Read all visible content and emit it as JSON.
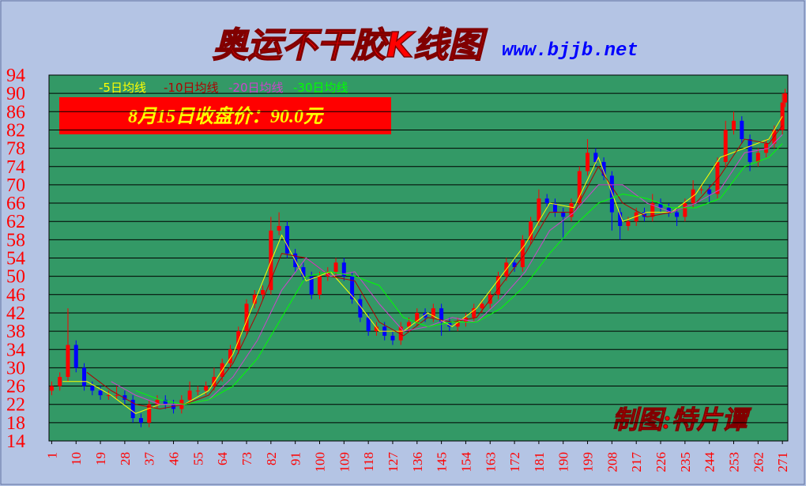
{
  "chart_data": {
    "type": "candlestick",
    "title": "奥运不干胶K线图",
    "subtitle": "www.bjjb.net",
    "annotation": "8月15日收盘价：90.0元",
    "credit": "制图:特片谭",
    "up_color": "#ff0000",
    "down_color": "#0000ff",
    "xlim": [
      0,
      273
    ],
    "ylim": [
      14,
      94
    ],
    "yticks": [
      14,
      18,
      22,
      26,
      30,
      34,
      38,
      42,
      46,
      50,
      54,
      58,
      62,
      66,
      70,
      74,
      78,
      82,
      86,
      90,
      94
    ],
    "xticks": [
      1,
      10,
      19,
      28,
      37,
      46,
      55,
      64,
      73,
      82,
      91,
      100,
      109,
      118,
      127,
      136,
      145,
      154,
      163,
      172,
      181,
      190,
      199,
      208,
      217,
      226,
      235,
      244,
      253,
      262,
      271
    ],
    "grid": true,
    "candles": [
      [
        1,
        25,
        27,
        24,
        26
      ],
      [
        4,
        26,
        29,
        25,
        28
      ],
      [
        7,
        28,
        43,
        27,
        35
      ],
      [
        10,
        35,
        36,
        29,
        30
      ],
      [
        13,
        30,
        31,
        25,
        26
      ],
      [
        16,
        26,
        27,
        24,
        25
      ],
      [
        19,
        25,
        26,
        23,
        24
      ],
      [
        22,
        24,
        25,
        23,
        24
      ],
      [
        25,
        24,
        26,
        23,
        24
      ],
      [
        28,
        24,
        25,
        22,
        23
      ],
      [
        31,
        23,
        24,
        18,
        19
      ],
      [
        34,
        19,
        20,
        17,
        18
      ],
      [
        37,
        18,
        23,
        17,
        22
      ],
      [
        40,
        22,
        24,
        21,
        23
      ],
      [
        43,
        23,
        24,
        21,
        22
      ],
      [
        46,
        22,
        23,
        20,
        21
      ],
      [
        49,
        21,
        24,
        20,
        23
      ],
      [
        52,
        23,
        27,
        22,
        25
      ],
      [
        55,
        25,
        26,
        24,
        25
      ],
      [
        58,
        25,
        27,
        24,
        26
      ],
      [
        61,
        26,
        30,
        25,
        28
      ],
      [
        64,
        28,
        32,
        27,
        31
      ],
      [
        67,
        31,
        35,
        30,
        34
      ],
      [
        70,
        34,
        39,
        33,
        38
      ],
      [
        73,
        38,
        45,
        37,
        44
      ],
      [
        76,
        44,
        47,
        43,
        46
      ],
      [
        79,
        46,
        48,
        45,
        47
      ],
      [
        82,
        47,
        63,
        46,
        60
      ],
      [
        85,
        60,
        64,
        59,
        61
      ],
      [
        88,
        61,
        62,
        54,
        55
      ],
      [
        91,
        55,
        56,
        51,
        52
      ],
      [
        94,
        52,
        53,
        49,
        50
      ],
      [
        97,
        50,
        51,
        45,
        46
      ],
      [
        100,
        46,
        51,
        45,
        50
      ],
      [
        103,
        50,
        52,
        49,
        51
      ],
      [
        106,
        51,
        54,
        50,
        53
      ],
      [
        109,
        53,
        54,
        49,
        50
      ],
      [
        112,
        50,
        51,
        44,
        45
      ],
      [
        115,
        45,
        46,
        40,
        41
      ],
      [
        118,
        41,
        42,
        37,
        38
      ],
      [
        121,
        38,
        40,
        37,
        39
      ],
      [
        124,
        39,
        40,
        36,
        37
      ],
      [
        127,
        37,
        38,
        35,
        36
      ],
      [
        130,
        36,
        40,
        35,
        39
      ],
      [
        133,
        39,
        41,
        38,
        40
      ],
      [
        136,
        40,
        43,
        39,
        42
      ],
      [
        139,
        42,
        43,
        40,
        41
      ],
      [
        142,
        41,
        44,
        40,
        43
      ],
      [
        145,
        43,
        44,
        37,
        40
      ],
      [
        148,
        40,
        41,
        38,
        39
      ],
      [
        151,
        39,
        41,
        38,
        40
      ],
      [
        154,
        40,
        42,
        39,
        41
      ],
      [
        157,
        41,
        44,
        40,
        43
      ],
      [
        160,
        43,
        45,
        42,
        44
      ],
      [
        163,
        44,
        47,
        43,
        46
      ],
      [
        166,
        46,
        51,
        45,
        50
      ],
      [
        169,
        50,
        54,
        49,
        53
      ],
      [
        172,
        53,
        54,
        51,
        52
      ],
      [
        175,
        52,
        59,
        51,
        58
      ],
      [
        178,
        58,
        63,
        57,
        62
      ],
      [
        181,
        62,
        69,
        61,
        67
      ],
      [
        184,
        67,
        68,
        65,
        66
      ],
      [
        187,
        66,
        67,
        63,
        64
      ],
      [
        190,
        64,
        65,
        58,
        63
      ],
      [
        193,
        63,
        67,
        62,
        66
      ],
      [
        196,
        66,
        74,
        65,
        73
      ],
      [
        199,
        73,
        80,
        72,
        77
      ],
      [
        202,
        77,
        78,
        74,
        75
      ],
      [
        205,
        75,
        76,
        71,
        72
      ],
      [
        208,
        72,
        73,
        60,
        64
      ],
      [
        211,
        64,
        65,
        58,
        61
      ],
      [
        214,
        61,
        63,
        60,
        62
      ],
      [
        217,
        62,
        65,
        61,
        64
      ],
      [
        220,
        64,
        65,
        62,
        63
      ],
      [
        223,
        63,
        68,
        62,
        66
      ],
      [
        226,
        66,
        67,
        64,
        65
      ],
      [
        229,
        65,
        66,
        63,
        64
      ],
      [
        232,
        64,
        65,
        61,
        63
      ],
      [
        235,
        63,
        67,
        62,
        66
      ],
      [
        238,
        66,
        71,
        65,
        69
      ],
      [
        241,
        69,
        70,
        68,
        69
      ],
      [
        244,
        69,
        70,
        66,
        68
      ],
      [
        247,
        68,
        76,
        67,
        75
      ],
      [
        250,
        75,
        84,
        74,
        82
      ],
      [
        253,
        82,
        86,
        81,
        84
      ],
      [
        256,
        84,
        85,
        79,
        80
      ],
      [
        259,
        80,
        81,
        73,
        75
      ],
      [
        262,
        75,
        78,
        74,
        77
      ],
      [
        265,
        77,
        80,
        76,
        79
      ],
      [
        268,
        79,
        83,
        78,
        82
      ],
      [
        271,
        82,
        90,
        81,
        88
      ],
      [
        272,
        88,
        91,
        87,
        90
      ]
    ],
    "ma_x": [
      5,
      14,
      23,
      32,
      41,
      50,
      59,
      68,
      77,
      86,
      95,
      104,
      113,
      122,
      131,
      140,
      149,
      158,
      167,
      176,
      185,
      194,
      203,
      212,
      221,
      230,
      239,
      248,
      257,
      266,
      271
    ],
    "series": [
      {
        "name": "-5日均线",
        "color": "#ffff00",
        "values": [
          27,
          27,
          24,
          20,
          22,
          22,
          25,
          33,
          46,
          59,
          49,
          51,
          45,
          38,
          38,
          42,
          39,
          43,
          50,
          57,
          66,
          65,
          76,
          62,
          64,
          64,
          68,
          76,
          78,
          80,
          85
        ]
      },
      {
        "name": "-10日均线",
        "color": "#b00000",
        "values": [
          null,
          29,
          25,
          22,
          21,
          22,
          24,
          31,
          42,
          55,
          54,
          50,
          49,
          40,
          37,
          41,
          40,
          41,
          48,
          55,
          64,
          64,
          74,
          66,
          63,
          64,
          66,
          72,
          80,
          79,
          83
        ]
      },
      {
        "name": "-20日均线",
        "color": "#cc44cc",
        "values": [
          null,
          null,
          27,
          24,
          22,
          22,
          23,
          28,
          36,
          47,
          54,
          50,
          51,
          44,
          38,
          39,
          41,
          40,
          45,
          51,
          60,
          64,
          70,
          70,
          66,
          64,
          66,
          69,
          77,
          78,
          81
        ]
      },
      {
        "name": "-30日均线",
        "color": "#00ff00",
        "values": [
          null,
          null,
          null,
          25,
          23,
          22,
          23,
          26,
          32,
          41,
          50,
          51,
          50,
          48,
          41,
          39,
          40,
          40,
          43,
          48,
          55,
          61,
          66,
          68,
          67,
          65,
          65,
          67,
          74,
          76,
          79
        ]
      }
    ]
  }
}
